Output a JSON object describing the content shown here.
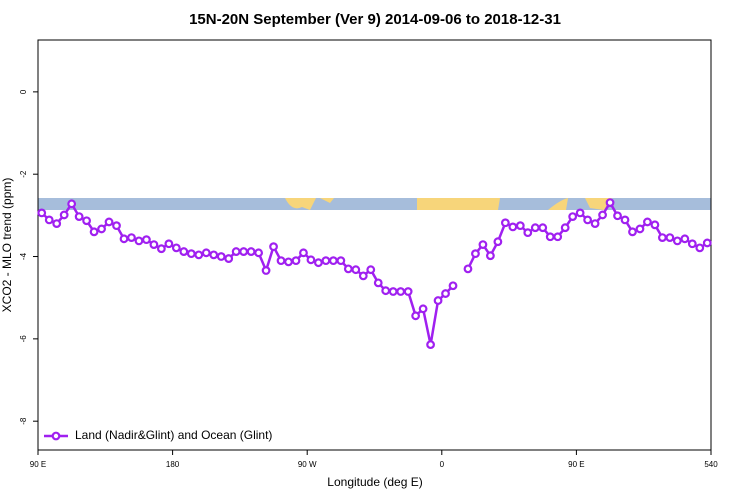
{
  "chart_data": {
    "type": "line",
    "title": "15N-20N September (Ver 9)   2014-09-06 to 2018-12-31",
    "x_label": "Longitude (deg E)",
    "y_label": "XCO2 - MLO trend (ppm)",
    "xlim": [
      90,
      540
    ],
    "xticks": [
      {
        "value": 90,
        "label": "90 E"
      },
      180,
      {
        "value": 270,
        "label": "90 W"
      },
      {
        "value": 360,
        "label": "0"
      },
      {
        "value": 450,
        "label": "90 E"
      },
      540
    ],
    "ylim": [
      -8.7,
      1.26
    ],
    "yticks": [
      0,
      -2,
      -4,
      -6,
      -8
    ],
    "legend": "bottomleft",
    "x": [
      92.5,
      97.5,
      102.5,
      107.5,
      112.5,
      117.5,
      122.5,
      127.5,
      132.5,
      137.5,
      142.5,
      147.5,
      152.5,
      157.5,
      162.5,
      167.5,
      172.5,
      177.5,
      182.5,
      187.5,
      192.5,
      197.5,
      202.5,
      207.5,
      212.5,
      217.5,
      222.5,
      227.5,
      232.5,
      237.5,
      242.5,
      247.5,
      252.5,
      257.5,
      262.5,
      267.5,
      272.5,
      277.5,
      282.5,
      287.5,
      292.5,
      297.5,
      302.5,
      307.5,
      312.5,
      317.5,
      322.5,
      327.5,
      332.5,
      337.5,
      342.5,
      347.5,
      352.5,
      357.5,
      362.5,
      367.5,
      372.5,
      377.5,
      382.5,
      387.5,
      392.5,
      397.5,
      402.5,
      407.5,
      412.5,
      417.5,
      422.5,
      427.5,
      432.5,
      437.5,
      442.5,
      447.5,
      452.5,
      457.5,
      462.5,
      467.5,
      472.5,
      477.5,
      482.5,
      487.5,
      492.5,
      497.5,
      502.5,
      507.5,
      512.5,
      517.5,
      522.5,
      527.5,
      532.5,
      537.5
    ],
    "series": [
      {
        "name": "Land (Nadir&Glint) and Ocean (Glint)",
        "color": "#a020f0",
        "values": [
          -2.94,
          -3.11,
          -3.2,
          -2.99,
          -2.72,
          -3.03,
          -3.13,
          -3.4,
          -3.33,
          -3.16,
          -3.25,
          -3.57,
          -3.54,
          -3.62,
          -3.59,
          -3.71,
          -3.81,
          -3.69,
          -3.79,
          -3.88,
          -3.93,
          -3.96,
          -3.91,
          -3.96,
          -4.0,
          -4.05,
          -3.88,
          -3.88,
          -3.88,
          -3.91,
          -4.34,
          -3.76,
          -4.1,
          -4.13,
          -4.1,
          -3.91,
          -4.08,
          -4.15,
          -4.1,
          -4.1,
          -4.1,
          -4.3,
          -4.32,
          -4.47,
          -4.32,
          -4.64,
          -4.83,
          -4.85,
          -4.85,
          -4.85,
          -5.44,
          -5.27,
          -6.14,
          -5.07,
          -4.9,
          -4.71,
          null,
          -4.3,
          -3.93,
          -3.71,
          -3.98,
          -3.64,
          -3.18,
          -3.28,
          -3.25,
          -3.42,
          -3.3,
          -3.3,
          -3.52,
          -3.52,
          -3.3,
          -3.03,
          -2.94,
          -3.11,
          -3.2,
          -2.99,
          -2.69,
          -3.01,
          -3.11,
          -3.4,
          -3.33,
          -3.16,
          -3.23,
          -3.54,
          -3.54,
          -3.62,
          -3.57,
          -3.69,
          -3.79,
          -3.67
        ]
      }
    ]
  }
}
